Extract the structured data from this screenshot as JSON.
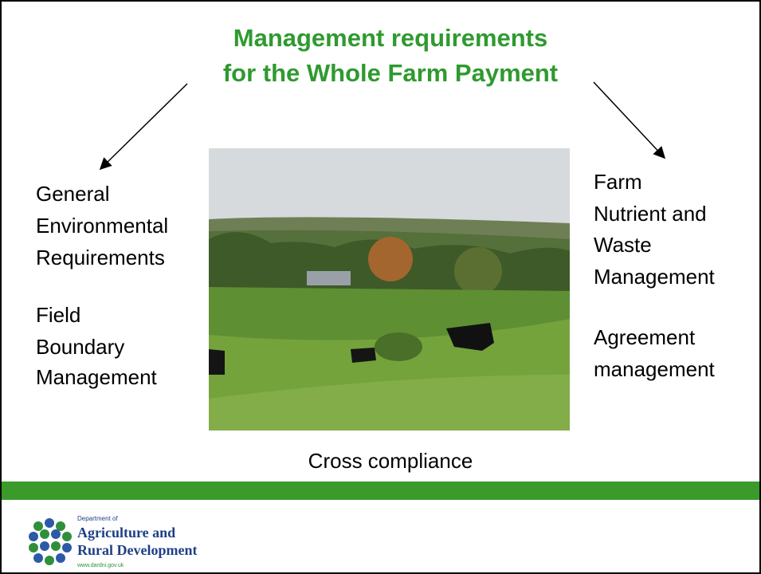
{
  "title": [
    "Management requirements",
    "for the Whole Farm Payment"
  ],
  "left": {
    "first": [
      "General",
      "Environmental",
      "Requirements"
    ],
    "second": [
      "Field",
      "Boundary",
      "Management"
    ]
  },
  "right": {
    "first": [
      "Farm",
      "Nutrient and",
      "Waste",
      "Management"
    ],
    "second": [
      "Agreement",
      "management"
    ]
  },
  "caption": "Cross compliance",
  "logo": {
    "dept": "Department of",
    "line1": "Agriculture and",
    "line2": "Rural Development",
    "url": "www.dardni.gov.uk"
  }
}
